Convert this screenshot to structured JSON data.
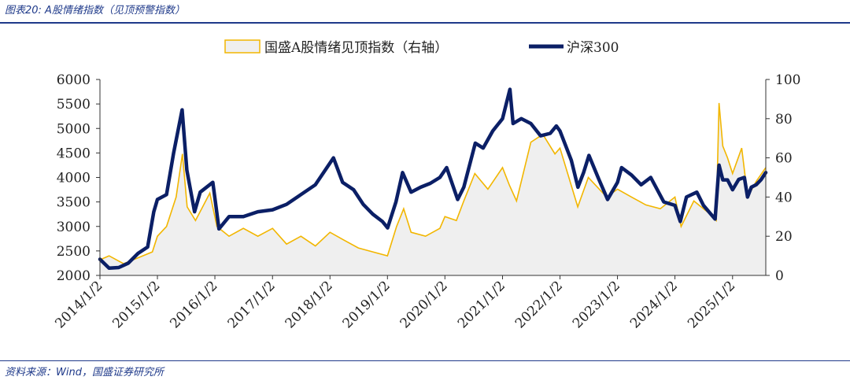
{
  "header": {
    "title": "图表20:  A股情绪指数（见顶预警指数）"
  },
  "footer": {
    "source": "资料来源：Wind，国盛证券研究所"
  },
  "colors": {
    "index": "#0b1f66",
    "sentiment_line": "#f2b600",
    "sentiment_fill": "#efefef",
    "rule": "#1f3a8a"
  },
  "chart_data": {
    "type": "line",
    "legend_position": "top-center",
    "grid": false,
    "xlim": [
      "2014/1/2",
      "2025/8/1"
    ],
    "x_ticks": [
      "2014/1/2",
      "2015/1/2",
      "2016/1/2",
      "2017/1/2",
      "2018/1/2",
      "2019/1/2",
      "2020/1/2",
      "2021/1/2",
      "2022/1/2",
      "2023/1/2",
      "2024/1/2",
      "2025/1/2"
    ],
    "y_left": {
      "lim": [
        2000,
        6000
      ],
      "ticks": [
        2000,
        2500,
        3000,
        3500,
        4000,
        4500,
        5000,
        5500,
        6000
      ]
    },
    "y_right": {
      "lim": [
        0,
        100
      ],
      "ticks": [
        0,
        20,
        40,
        60,
        80,
        100
      ]
    },
    "series": [
      {
        "name": "国盛A股情绪见顶指数（右轴）",
        "axis": "right",
        "style": "area",
        "x": [
          "2014/1/2",
          "2014/3/1",
          "2014/6/1",
          "2014/9/1",
          "2014/12/1",
          "2015/1/2",
          "2015/3/1",
          "2015/5/1",
          "2015/6/10",
          "2015/7/10",
          "2015/9/1",
          "2015/12/1",
          "2016/1/15",
          "2016/4/1",
          "2016/7/1",
          "2016/10/1",
          "2017/1/2",
          "2017/4/1",
          "2017/7/1",
          "2017/10/1",
          "2018/1/2",
          "2018/4/1",
          "2018/7/1",
          "2018/10/1",
          "2019/1/2",
          "2019/3/1",
          "2019/4/15",
          "2019/6/1",
          "2019/9/1",
          "2019/12/1",
          "2020/1/2",
          "2020/3/15",
          "2020/5/1",
          "2020/7/10",
          "2020/10/1",
          "2021/1/2",
          "2021/2/15",
          "2021/4/1",
          "2021/7/1",
          "2021/9/15",
          "2021/12/1",
          "2022/1/2",
          "2022/4/25",
          "2022/7/1",
          "2022/10/25",
          "2023/1/2",
          "2023/4/1",
          "2023/7/1",
          "2023/10/1",
          "2024/1/2",
          "2024/2/10",
          "2024/5/1",
          "2024/8/1",
          "2024/9/20",
          "2024/10/8",
          "2024/11/1",
          "2024/12/1",
          "2025/1/2",
          "2025/3/1",
          "2025/4/8",
          "2025/6/1",
          "2025/8/1"
        ],
        "values": [
          8,
          10,
          6,
          9,
          12,
          20,
          25,
          40,
          62,
          35,
          28,
          42,
          25,
          20,
          24,
          20,
          24,
          16,
          20,
          15,
          22,
          18,
          14,
          12,
          10,
          25,
          34,
          22,
          20,
          24,
          30,
          28,
          38,
          52,
          44,
          55,
          46,
          38,
          68,
          72,
          62,
          65,
          35,
          50,
          40,
          44,
          40,
          36,
          34,
          40,
          25,
          38,
          32,
          28,
          88,
          66,
          60,
          52,
          65,
          40,
          48,
          55
        ]
      },
      {
        "name": "沪深300",
        "axis": "left",
        "style": "line",
        "x": [
          "2014/1/2",
          "2014/3/1",
          "2014/5/1",
          "2014/7/1",
          "2014/9/1",
          "2014/11/1",
          "2014/12/10",
          "2015/1/2",
          "2015/3/1",
          "2015/4/15",
          "2015/6/8",
          "2015/7/8",
          "2015/8/26",
          "2015/10/1",
          "2015/12/20",
          "2016/1/28",
          "2016/4/1",
          "2016/7/1",
          "2016/10/1",
          "2017/1/2",
          "2017/4/1",
          "2017/7/1",
          "2017/10/1",
          "2018/1/24",
          "2018/3/23",
          "2018/6/1",
          "2018/8/1",
          "2018/10/1",
          "2018/12/1",
          "2019/1/3",
          "2019/2/25",
          "2019/4/8",
          "2019/6/1",
          "2019/8/1",
          "2019/10/1",
          "2019/12/1",
          "2020/1/13",
          "2020/3/23",
          "2020/5/1",
          "2020/7/13",
          "2020/9/1",
          "2020/11/1",
          "2021/1/2",
          "2021/2/18",
          "2021/3/10",
          "2021/5/1",
          "2021/7/1",
          "2021/9/1",
          "2021/11/1",
          "2021/12/10",
          "2022/1/2",
          "2022/3/15",
          "2022/4/26",
          "2022/6/1",
          "2022/7/5",
          "2022/9/1",
          "2022/10/31",
          "2023/1/2",
          "2023/1/28",
          "2023/4/1",
          "2023/6/1",
          "2023/8/1",
          "2023/10/23",
          "2024/1/2",
          "2024/2/5",
          "2024/3/15",
          "2024/5/20",
          "2024/7/1",
          "2024/9/13",
          "2024/10/8",
          "2024/11/1",
          "2024/12/1",
          "2025/1/2",
          "2025/2/10",
          "2025/3/18",
          "2025/4/7",
          "2025/5/1",
          "2025/6/1",
          "2025/7/1",
          "2025/8/1"
        ],
        "values": [
          2330,
          2150,
          2160,
          2250,
          2450,
          2580,
          3300,
          3550,
          3650,
          4500,
          5380,
          4150,
          3300,
          3700,
          3900,
          2950,
          3200,
          3200,
          3300,
          3340,
          3450,
          3650,
          3850,
          4400,
          3900,
          3750,
          3450,
          3250,
          3100,
          2970,
          3500,
          4100,
          3700,
          3800,
          3880,
          4000,
          4200,
          3550,
          3800,
          4700,
          4600,
          4950,
          5200,
          5800,
          5100,
          5200,
          5100,
          4850,
          4900,
          5050,
          4950,
          4350,
          3800,
          4100,
          4450,
          4000,
          3550,
          3900,
          4200,
          4050,
          3850,
          4000,
          3500,
          3430,
          3100,
          3600,
          3700,
          3430,
          3150,
          4250,
          3950,
          3950,
          3750,
          3960,
          4000,
          3600,
          3800,
          3850,
          3950,
          4100
        ]
      }
    ]
  }
}
